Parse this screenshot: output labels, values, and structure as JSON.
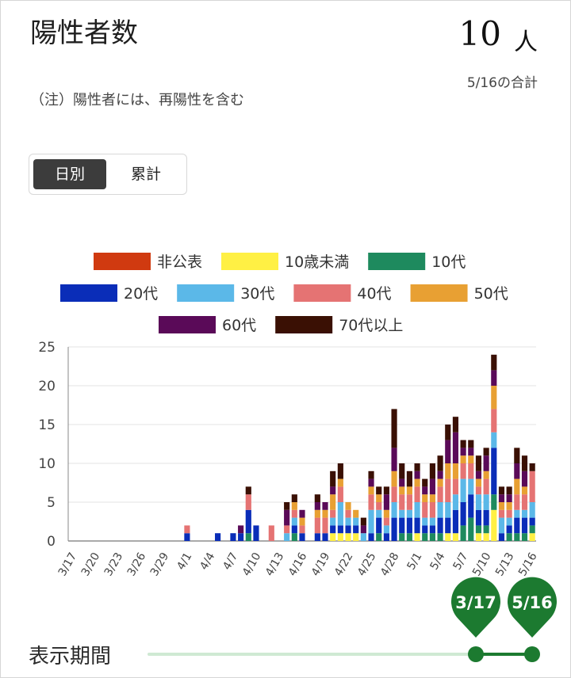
{
  "header": {
    "title": "陽性者数",
    "total_value": "10",
    "total_unit": "人",
    "total_caption": "5/16の合計"
  },
  "note": "（注）陽性者には、再陽性を含む",
  "toggle": {
    "daily_label": "日別",
    "cumulative_label": "累計",
    "selected": "daily"
  },
  "period": {
    "label": "表示期間",
    "start_label": "3/17",
    "end_label": "5/16",
    "accent_color": "#1c7a30",
    "track_color": "#cfe9d3"
  },
  "chart_data": {
    "type": "bar",
    "stacked": true,
    "x_tick_labels": [
      "3/17",
      "3/20",
      "3/23",
      "3/26",
      "3/29",
      "4/1",
      "4/4",
      "4/7",
      "4/10",
      "4/13",
      "4/16",
      "4/19",
      "4/22",
      "4/25",
      "4/28",
      "5/1",
      "5/4",
      "5/7",
      "5/10",
      "5/13",
      "5/16"
    ],
    "ylim": [
      0,
      25
    ],
    "y_ticks": [
      0,
      5,
      10,
      15,
      20,
      25
    ],
    "grid": true,
    "legend_position": "top",
    "categories": [
      "3/17",
      "3/18",
      "3/19",
      "3/20",
      "3/21",
      "3/22",
      "3/23",
      "3/24",
      "3/25",
      "3/26",
      "3/27",
      "3/28",
      "3/29",
      "3/30",
      "3/31",
      "4/1",
      "4/2",
      "4/3",
      "4/4",
      "4/5",
      "4/6",
      "4/7",
      "4/8",
      "4/9",
      "4/10",
      "4/11",
      "4/12",
      "4/13",
      "4/14",
      "4/15",
      "4/16",
      "4/17",
      "4/18",
      "4/19",
      "4/20",
      "4/21",
      "4/22",
      "4/23",
      "4/24",
      "4/25",
      "4/26",
      "4/27",
      "4/28",
      "4/29",
      "4/30",
      "5/1",
      "5/2",
      "5/3",
      "5/4",
      "5/5",
      "5/6",
      "5/7",
      "5/8",
      "5/9",
      "5/10",
      "5/11",
      "5/12",
      "5/13",
      "5/14",
      "5/15",
      "5/16"
    ],
    "series": [
      {
        "name": "非公表",
        "color": "#d03a10",
        "values": [
          0,
          0,
          0,
          0,
          0,
          0,
          0,
          0,
          0,
          0,
          0,
          0,
          0,
          0,
          0,
          0,
          0,
          0,
          0,
          0,
          0,
          0,
          0,
          0,
          0,
          0,
          0,
          0,
          0,
          0,
          0,
          0,
          0,
          0,
          0,
          0,
          0,
          0,
          0,
          0,
          0,
          0,
          0,
          0,
          0,
          0,
          0,
          0,
          0,
          0,
          0,
          0,
          0,
          0,
          0,
          0,
          0,
          0,
          0,
          0,
          0
        ]
      },
      {
        "name": "10歳未満",
        "color": "#fff044",
        "values": [
          0,
          0,
          0,
          0,
          0,
          0,
          0,
          0,
          0,
          0,
          0,
          0,
          0,
          0,
          0,
          0,
          0,
          0,
          0,
          0,
          0,
          0,
          0,
          0,
          0,
          0,
          0,
          0,
          0,
          0,
          0,
          0,
          0,
          0,
          1,
          1,
          1,
          1,
          0,
          0,
          0,
          0,
          0,
          0,
          0,
          1,
          0,
          0,
          0,
          1,
          1,
          0,
          0,
          1,
          1,
          4,
          0,
          0,
          0,
          0,
          1
        ]
      },
      {
        "name": "10代",
        "color": "#1e8a5e",
        "values": [
          0,
          0,
          0,
          0,
          0,
          0,
          0,
          0,
          0,
          0,
          0,
          0,
          0,
          0,
          0,
          0,
          0,
          0,
          0,
          0,
          0,
          0,
          0,
          1,
          0,
          0,
          0,
          0,
          0,
          1,
          0,
          0,
          0,
          0,
          0,
          0,
          0,
          0,
          0,
          0,
          1,
          0,
          0,
          1,
          1,
          0,
          1,
          1,
          1,
          0,
          0,
          2,
          3,
          1,
          1,
          2,
          0,
          1,
          1,
          1,
          1
        ]
      },
      {
        "name": "20代",
        "color": "#0a2db8",
        "values": [
          0,
          0,
          0,
          0,
          0,
          0,
          0,
          0,
          0,
          0,
          0,
          0,
          0,
          0,
          0,
          1,
          0,
          0,
          0,
          1,
          0,
          1,
          1,
          3,
          2,
          0,
          0,
          0,
          0,
          1,
          1,
          0,
          1,
          1,
          1,
          1,
          1,
          1,
          0,
          1,
          2,
          1,
          3,
          2,
          2,
          2,
          1,
          1,
          2,
          2,
          3,
          3,
          3,
          2,
          2,
          6,
          1,
          1,
          2,
          2,
          1
        ]
      },
      {
        "name": "30代",
        "color": "#5bb8e8",
        "values": [
          0,
          0,
          0,
          0,
          0,
          0,
          0,
          0,
          0,
          0,
          0,
          0,
          0,
          0,
          0,
          0,
          0,
          0,
          0,
          0,
          0,
          0,
          0,
          0,
          0,
          0,
          0,
          0,
          1,
          1,
          0,
          0,
          0,
          0,
          1,
          3,
          1,
          1,
          1,
          3,
          1,
          1,
          2,
          1,
          1,
          2,
          1,
          1,
          2,
          2,
          2,
          3,
          2,
          2,
          2,
          2,
          2,
          1,
          1,
          1,
          2
        ]
      },
      {
        "name": "40代",
        "color": "#e57373",
        "values": [
          0,
          0,
          0,
          0,
          0,
          0,
          0,
          0,
          0,
          0,
          0,
          0,
          0,
          0,
          0,
          1,
          0,
          0,
          0,
          0,
          0,
          0,
          0,
          2,
          0,
          0,
          2,
          0,
          1,
          1,
          1,
          0,
          2,
          2,
          1,
          2,
          1,
          0,
          0,
          2,
          1,
          1,
          2,
          2,
          2,
          2,
          2,
          2,
          2,
          3,
          2,
          2,
          2,
          1,
          2,
          3,
          1,
          1,
          2,
          2,
          4
        ]
      },
      {
        "name": "50代",
        "color": "#e8a033",
        "values": [
          0,
          0,
          0,
          0,
          0,
          0,
          0,
          0,
          0,
          0,
          0,
          0,
          0,
          0,
          0,
          0,
          0,
          0,
          0,
          0,
          0,
          0,
          0,
          0,
          0,
          0,
          0,
          0,
          0,
          1,
          1,
          0,
          1,
          1,
          2,
          1,
          1,
          1,
          0,
          1,
          1,
          1,
          2,
          1,
          1,
          1,
          1,
          1,
          1,
          2,
          2,
          1,
          1,
          1,
          1,
          3,
          1,
          1,
          2,
          1,
          0
        ]
      },
      {
        "name": "60代",
        "color": "#5a0a58",
        "values": [
          0,
          0,
          0,
          0,
          0,
          0,
          0,
          0,
          0,
          0,
          0,
          0,
          0,
          0,
          0,
          0,
          0,
          0,
          0,
          0,
          0,
          0,
          1,
          0,
          0,
          0,
          0,
          0,
          2,
          0,
          1,
          0,
          1,
          1,
          1,
          0,
          0,
          0,
          1,
          1,
          0,
          2,
          3,
          1,
          0,
          1,
          1,
          2,
          1,
          3,
          4,
          1,
          1,
          1,
          2,
          2,
          1,
          1,
          2,
          2,
          0
        ]
      },
      {
        "name": "70代以上",
        "color": "#3a1004",
        "values": [
          0,
          0,
          0,
          0,
          0,
          0,
          0,
          0,
          0,
          0,
          0,
          0,
          0,
          0,
          0,
          0,
          0,
          0,
          0,
          0,
          0,
          0,
          0,
          1,
          0,
          0,
          0,
          0,
          1,
          1,
          0,
          0,
          1,
          0,
          2,
          2,
          0,
          0,
          1,
          1,
          1,
          1,
          5,
          2,
          2,
          1,
          1,
          2,
          2,
          2,
          2,
          1,
          1,
          2,
          1,
          2,
          1,
          1,
          2,
          2,
          1
        ]
      }
    ]
  }
}
